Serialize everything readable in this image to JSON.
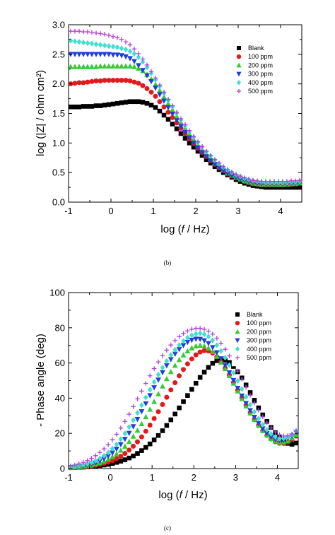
{
  "chart_data": [
    {
      "type": "scatter",
      "panel_label": "(b)",
      "xlabel_prefix": "log (",
      "xlabel_var": "f",
      "xlabel_suffix": " / Hz)",
      "ylabel": "log (|Z| / ohm cm²)",
      "xlim": [
        -1,
        4.5
      ],
      "ylim": [
        0,
        3.0
      ],
      "xticks": [
        "-1",
        "0",
        "1",
        "2",
        "3",
        "4"
      ],
      "yticks": [
        "0.0",
        "0.5",
        "1.0",
        "1.5",
        "2.0",
        "2.5",
        "3.0"
      ],
      "legend_position": "top-right",
      "x": [
        -0.95,
        -0.85,
        -0.75,
        -0.65,
        -0.55,
        -0.45,
        -0.35,
        -0.25,
        -0.15,
        -0.05,
        0.05,
        0.15,
        0.25,
        0.35,
        0.45,
        0.55,
        0.65,
        0.75,
        0.85,
        0.95,
        1.05,
        1.15,
        1.25,
        1.35,
        1.45,
        1.55,
        1.65,
        1.75,
        1.85,
        1.95,
        2.05,
        2.15,
        2.25,
        2.35,
        2.45,
        2.55,
        2.65,
        2.75,
        2.85,
        2.95,
        3.05,
        3.15,
        3.25,
        3.35,
        3.45,
        3.55,
        3.65,
        3.75,
        3.85,
        3.95,
        4.05,
        4.15,
        4.25,
        4.35,
        4.45
      ],
      "series": [
        {
          "name": "Blank",
          "marker": "square",
          "color": "#000000",
          "values": [
            1.61,
            1.61,
            1.61,
            1.62,
            1.62,
            1.62,
            1.63,
            1.63,
            1.64,
            1.65,
            1.66,
            1.67,
            1.68,
            1.69,
            1.7,
            1.7,
            1.7,
            1.69,
            1.67,
            1.64,
            1.6,
            1.54,
            1.47,
            1.4,
            1.32,
            1.24,
            1.16,
            1.08,
            1.0,
            0.93,
            0.86,
            0.79,
            0.72,
            0.66,
            0.6,
            0.55,
            0.5,
            0.46,
            0.42,
            0.38,
            0.35,
            0.32,
            0.3,
            0.28,
            0.27,
            0.26,
            0.25,
            0.25,
            0.25,
            0.25,
            0.25,
            0.25,
            0.25,
            0.25,
            0.25
          ]
        },
        {
          "name": "100 ppm",
          "marker": "circle",
          "color": "#e31a1c",
          "values": [
            2.0,
            2.01,
            2.02,
            2.02,
            2.03,
            2.04,
            2.05,
            2.05,
            2.06,
            2.06,
            2.06,
            2.06,
            2.06,
            2.06,
            2.05,
            2.03,
            2.01,
            1.97,
            1.92,
            1.86,
            1.79,
            1.7,
            1.61,
            1.52,
            1.43,
            1.34,
            1.25,
            1.16,
            1.07,
            0.99,
            0.91,
            0.84,
            0.77,
            0.7,
            0.64,
            0.58,
            0.53,
            0.48,
            0.44,
            0.41,
            0.38,
            0.35,
            0.33,
            0.31,
            0.3,
            0.29,
            0.29,
            0.29,
            0.29,
            0.29,
            0.29,
            0.3,
            0.3,
            0.31,
            0.32
          ]
        },
        {
          "name": "200 ppm",
          "marker": "triangle-up",
          "color": "#33cc33",
          "values": [
            2.29,
            2.29,
            2.29,
            2.29,
            2.29,
            2.29,
            2.29,
            2.3,
            2.3,
            2.3,
            2.3,
            2.3,
            2.3,
            2.3,
            2.3,
            2.29,
            2.26,
            2.22,
            2.16,
            2.08,
            1.99,
            1.89,
            1.78,
            1.67,
            1.56,
            1.45,
            1.35,
            1.25,
            1.15,
            1.06,
            0.97,
            0.89,
            0.81,
            0.74,
            0.67,
            0.61,
            0.55,
            0.5,
            0.46,
            0.42,
            0.39,
            0.36,
            0.34,
            0.32,
            0.31,
            0.3,
            0.3,
            0.3,
            0.3,
            0.3,
            0.3,
            0.3,
            0.31,
            0.31,
            0.32
          ]
        },
        {
          "name": "300 ppm",
          "marker": "triangle-down",
          "color": "#1f3fd6",
          "values": [
            2.5,
            2.5,
            2.5,
            2.5,
            2.5,
            2.5,
            2.5,
            2.5,
            2.5,
            2.5,
            2.49,
            2.49,
            2.48,
            2.46,
            2.43,
            2.38,
            2.31,
            2.23,
            2.14,
            2.04,
            1.93,
            1.82,
            1.71,
            1.6,
            1.49,
            1.38,
            1.28,
            1.18,
            1.09,
            1.0,
            0.92,
            0.84,
            0.77,
            0.7,
            0.64,
            0.58,
            0.53,
            0.49,
            0.45,
            0.42,
            0.39,
            0.37,
            0.35,
            0.33,
            0.32,
            0.31,
            0.31,
            0.31,
            0.31,
            0.31,
            0.31,
            0.31,
            0.32,
            0.32,
            0.33
          ]
        },
        {
          "name": "400 ppm",
          "marker": "diamond",
          "color": "#40e0d0",
          "values": [
            2.73,
            2.72,
            2.71,
            2.7,
            2.69,
            2.68,
            2.67,
            2.66,
            2.65,
            2.64,
            2.63,
            2.62,
            2.6,
            2.58,
            2.55,
            2.51,
            2.45,
            2.37,
            2.28,
            2.18,
            2.07,
            1.96,
            1.84,
            1.72,
            1.61,
            1.5,
            1.39,
            1.29,
            1.19,
            1.1,
            1.01,
            0.93,
            0.85,
            0.78,
            0.71,
            0.65,
            0.59,
            0.54,
            0.5,
            0.46,
            0.43,
            0.4,
            0.38,
            0.36,
            0.35,
            0.34,
            0.33,
            0.33,
            0.33,
            0.33,
            0.33,
            0.33,
            0.34,
            0.34,
            0.35
          ]
        },
        {
          "name": "500 ppm",
          "marker": "plus",
          "color": "#b040d8",
          "values": [
            2.89,
            2.89,
            2.89,
            2.88,
            2.88,
            2.87,
            2.86,
            2.85,
            2.84,
            2.82,
            2.8,
            2.78,
            2.75,
            2.71,
            2.66,
            2.59,
            2.51,
            2.42,
            2.32,
            2.21,
            2.1,
            1.98,
            1.86,
            1.74,
            1.63,
            1.52,
            1.41,
            1.31,
            1.21,
            1.11,
            1.02,
            0.94,
            0.86,
            0.79,
            0.72,
            0.66,
            0.6,
            0.55,
            0.51,
            0.47,
            0.44,
            0.41,
            0.39,
            0.37,
            0.36,
            0.35,
            0.35,
            0.35,
            0.35,
            0.35,
            0.35,
            0.35,
            0.36,
            0.36,
            0.37
          ]
        }
      ]
    },
    {
      "type": "scatter",
      "panel_label": "(c)",
      "xlabel_prefix": "log (",
      "xlabel_var": "f",
      "xlabel_suffix": " / Hz)",
      "ylabel": "- Phase angle (deg)",
      "xlim": [
        -1,
        4.5
      ],
      "ylim": [
        0,
        100
      ],
      "xticks": [
        "-1",
        "0",
        "1",
        "2",
        "3",
        "4"
      ],
      "yticks": [
        "0",
        "20",
        "40",
        "60",
        "80",
        "100"
      ],
      "legend_position": "top-right",
      "x": [
        -0.95,
        -0.85,
        -0.75,
        -0.65,
        -0.55,
        -0.45,
        -0.35,
        -0.25,
        -0.15,
        -0.05,
        0.05,
        0.15,
        0.25,
        0.35,
        0.45,
        0.55,
        0.65,
        0.75,
        0.85,
        0.95,
        1.05,
        1.15,
        1.25,
        1.35,
        1.45,
        1.55,
        1.65,
        1.75,
        1.85,
        1.95,
        2.05,
        2.15,
        2.25,
        2.35,
        2.45,
        2.55,
        2.65,
        2.75,
        2.85,
        2.95,
        3.05,
        3.15,
        3.25,
        3.35,
        3.45,
        3.55,
        3.65,
        3.75,
        3.85,
        3.95,
        4.05,
        4.15,
        4.25,
        4.35,
        4.45
      ],
      "series": [
        {
          "name": "Blank",
          "marker": "square",
          "color": "#000000",
          "values": [
            0.5,
            0.6,
            0.7,
            0.8,
            1.0,
            1.2,
            1.4,
            1.7,
            2.0,
            2.4,
            2.9,
            3.5,
            4.2,
            5.0,
            6.0,
            7.2,
            8.6,
            10.2,
            12.0,
            14.0,
            16.3,
            18.8,
            21.5,
            24.5,
            27.7,
            31.0,
            34.5,
            38.0,
            41.5,
            45.0,
            48.5,
            51.8,
            54.8,
            57.5,
            59.8,
            61.3,
            62.0,
            61.6,
            60.3,
            58.0,
            55.0,
            51.5,
            47.5,
            43.2,
            38.8,
            34.5,
            30.5,
            26.8,
            23.4,
            20.4,
            17.8,
            15.7,
            14.3,
            13.8,
            14.5
          ]
        },
        {
          "name": "100 ppm",
          "marker": "circle",
          "color": "#e31a1c",
          "values": [
            0.5,
            0.6,
            0.8,
            1.0,
            1.2,
            1.5,
            1.9,
            2.4,
            3.0,
            3.7,
            4.6,
            5.7,
            7.0,
            8.6,
            10.5,
            12.7,
            15.2,
            18.0,
            21.2,
            24.7,
            28.4,
            32.3,
            36.4,
            40.5,
            44.7,
            48.8,
            52.7,
            56.3,
            59.5,
            62.3,
            64.6,
            66.2,
            67.0,
            66.8,
            65.6,
            63.5,
            60.6,
            57.1,
            53.2,
            49.0,
            44.6,
            40.2,
            35.9,
            31.8,
            28.0,
            24.6,
            21.5,
            18.9,
            16.8,
            15.2,
            14.4,
            14.3,
            15.0,
            16.4,
            18.4
          ]
        },
        {
          "name": "200 ppm",
          "marker": "triangle-up",
          "color": "#33cc33",
          "values": [
            0.6,
            0.8,
            1.0,
            1.3,
            1.6,
            2.0,
            2.6,
            3.3,
            4.2,
            5.3,
            6.7,
            8.3,
            10.3,
            12.6,
            15.3,
            18.3,
            21.7,
            25.4,
            29.4,
            33.6,
            38.0,
            42.4,
            46.8,
            51.0,
            55.0,
            58.6,
            61.8,
            64.5,
            66.8,
            68.5,
            69.6,
            70.0,
            69.6,
            68.4,
            66.4,
            63.7,
            60.4,
            56.7,
            52.7,
            48.4,
            44.0,
            39.7,
            35.5,
            31.5,
            27.8,
            24.4,
            21.5,
            19.0,
            17.0,
            15.6,
            15.0,
            15.1,
            15.9,
            17.4,
            19.4
          ]
        },
        {
          "name": "300 ppm",
          "marker": "triangle-down",
          "color": "#1f3fd6",
          "values": [
            0.7,
            0.9,
            1.2,
            1.5,
            2.0,
            2.6,
            3.3,
            4.3,
            5.5,
            7.0,
            8.9,
            11.1,
            13.7,
            16.7,
            20.1,
            23.9,
            28.0,
            32.4,
            36.9,
            41.5,
            46.0,
            50.4,
            54.6,
            58.5,
            62.0,
            65.1,
            67.8,
            70.0,
            71.8,
            73.0,
            73.6,
            73.5,
            72.7,
            71.1,
            68.8,
            65.9,
            62.5,
            58.6,
            54.5,
            50.1,
            45.7,
            41.3,
            37.1,
            33.0,
            29.2,
            25.7,
            22.6,
            20.0,
            18.0,
            16.6,
            16.0,
            16.2,
            17.1,
            18.6,
            20.6
          ]
        },
        {
          "name": "400 ppm",
          "marker": "diamond",
          "color": "#40e0d0",
          "values": [
            0.9,
            1.2,
            1.6,
            2.1,
            2.7,
            3.5,
            4.5,
            5.8,
            7.3,
            9.1,
            11.3,
            13.8,
            16.7,
            20.0,
            23.6,
            27.5,
            31.7,
            36.0,
            40.4,
            44.8,
            49.2,
            53.4,
            57.4,
            61.1,
            64.5,
            67.5,
            70.2,
            72.5,
            74.4,
            75.8,
            76.6,
            76.8,
            76.3,
            75.0,
            72.9,
            70.1,
            66.8,
            63.0,
            58.8,
            54.4,
            49.8,
            45.2,
            40.7,
            36.3,
            32.2,
            28.4,
            25.0,
            22.1,
            19.7,
            18.0,
            17.1,
            17.1,
            17.9,
            19.4,
            21.4
          ]
        },
        {
          "name": "500 ppm",
          "marker": "plus",
          "color": "#b040d8",
          "values": [
            1.5,
            2.0,
            2.7,
            3.5,
            4.5,
            5.8,
            7.3,
            9.1,
            11.2,
            13.6,
            16.4,
            19.5,
            23.0,
            26.8,
            30.9,
            35.2,
            39.6,
            44.0,
            48.4,
            52.7,
            56.8,
            60.6,
            64.1,
            67.3,
            70.2,
            72.8,
            75.0,
            76.8,
            78.2,
            79.2,
            79.7,
            79.7,
            79.2,
            78.1,
            76.4,
            74.1,
            71.2,
            67.8,
            64.0,
            59.8,
            55.4,
            50.8,
            46.2,
            41.7,
            37.3,
            33.2,
            29.4,
            26.0,
            23.1,
            20.8,
            19.2,
            18.5,
            18.7,
            19.6,
            21.2
          ]
        }
      ]
    }
  ]
}
